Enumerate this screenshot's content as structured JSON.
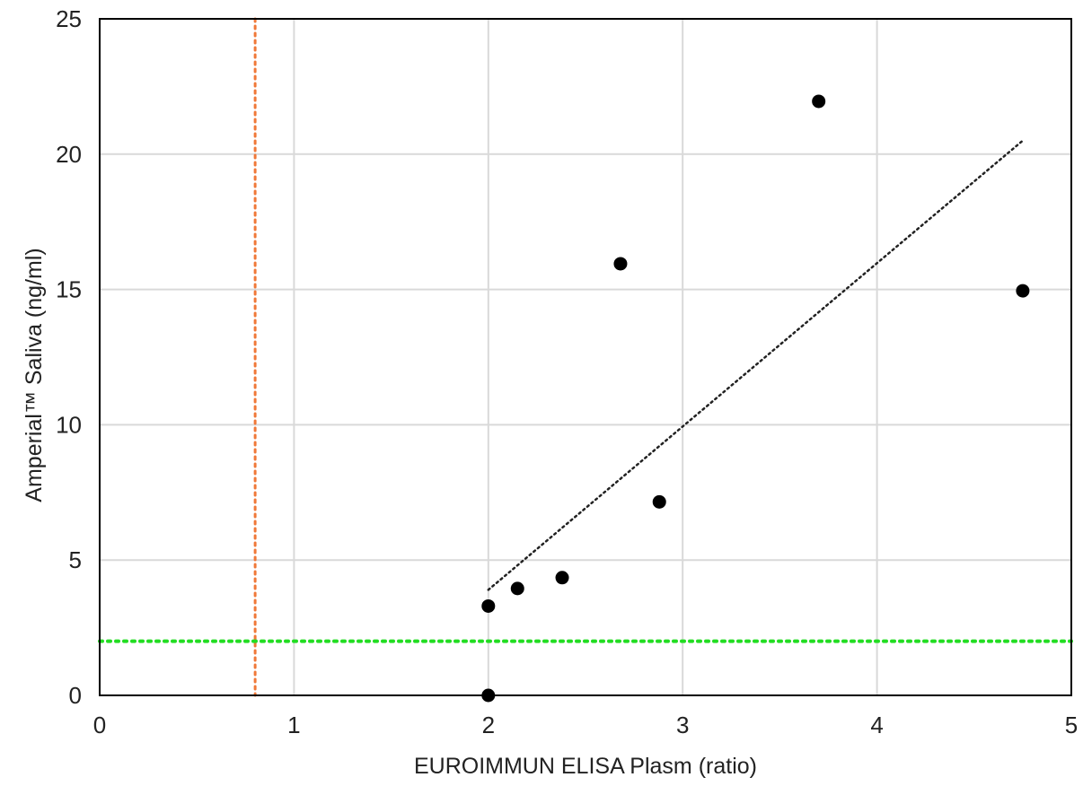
{
  "chart_data": {
    "type": "scatter",
    "title": "",
    "xlabel": "EUROIMMUN ELISA Plasm (ratio)",
    "ylabel": "Amperial™ Saliva (ng/ml)",
    "xlim": [
      0,
      5
    ],
    "ylim": [
      0,
      25
    ],
    "x_ticks": [
      "0",
      "1",
      "2",
      "3",
      "4",
      "5"
    ],
    "y_ticks": [
      "0",
      "5",
      "10",
      "15",
      "20",
      "25"
    ],
    "grid": true,
    "legend": "none",
    "points": [
      {
        "x": 2.0,
        "y": 0.0
      },
      {
        "x": 2.0,
        "y": 3.3
      },
      {
        "x": 2.15,
        "y": 3.95
      },
      {
        "x": 2.38,
        "y": 4.35
      },
      {
        "x": 2.68,
        "y": 15.95
      },
      {
        "x": 2.88,
        "y": 7.15
      },
      {
        "x": 3.7,
        "y": 21.95
      },
      {
        "x": 4.75,
        "y": 14.95
      }
    ],
    "trendline": {
      "x1": 2.0,
      "y1": 3.9,
      "x2": 4.75,
      "y2": 20.5,
      "style": "dotted",
      "color": "#222222"
    },
    "reference_lines": [
      {
        "orientation": "vertical",
        "value": 0.8,
        "color": "#f07838",
        "style": "dotted"
      },
      {
        "orientation": "horizontal",
        "value": 2.0,
        "color": "#22dd22",
        "style": "dotted"
      }
    ],
    "point_color": "#000000",
    "grid_color": "#d9d9d9"
  }
}
